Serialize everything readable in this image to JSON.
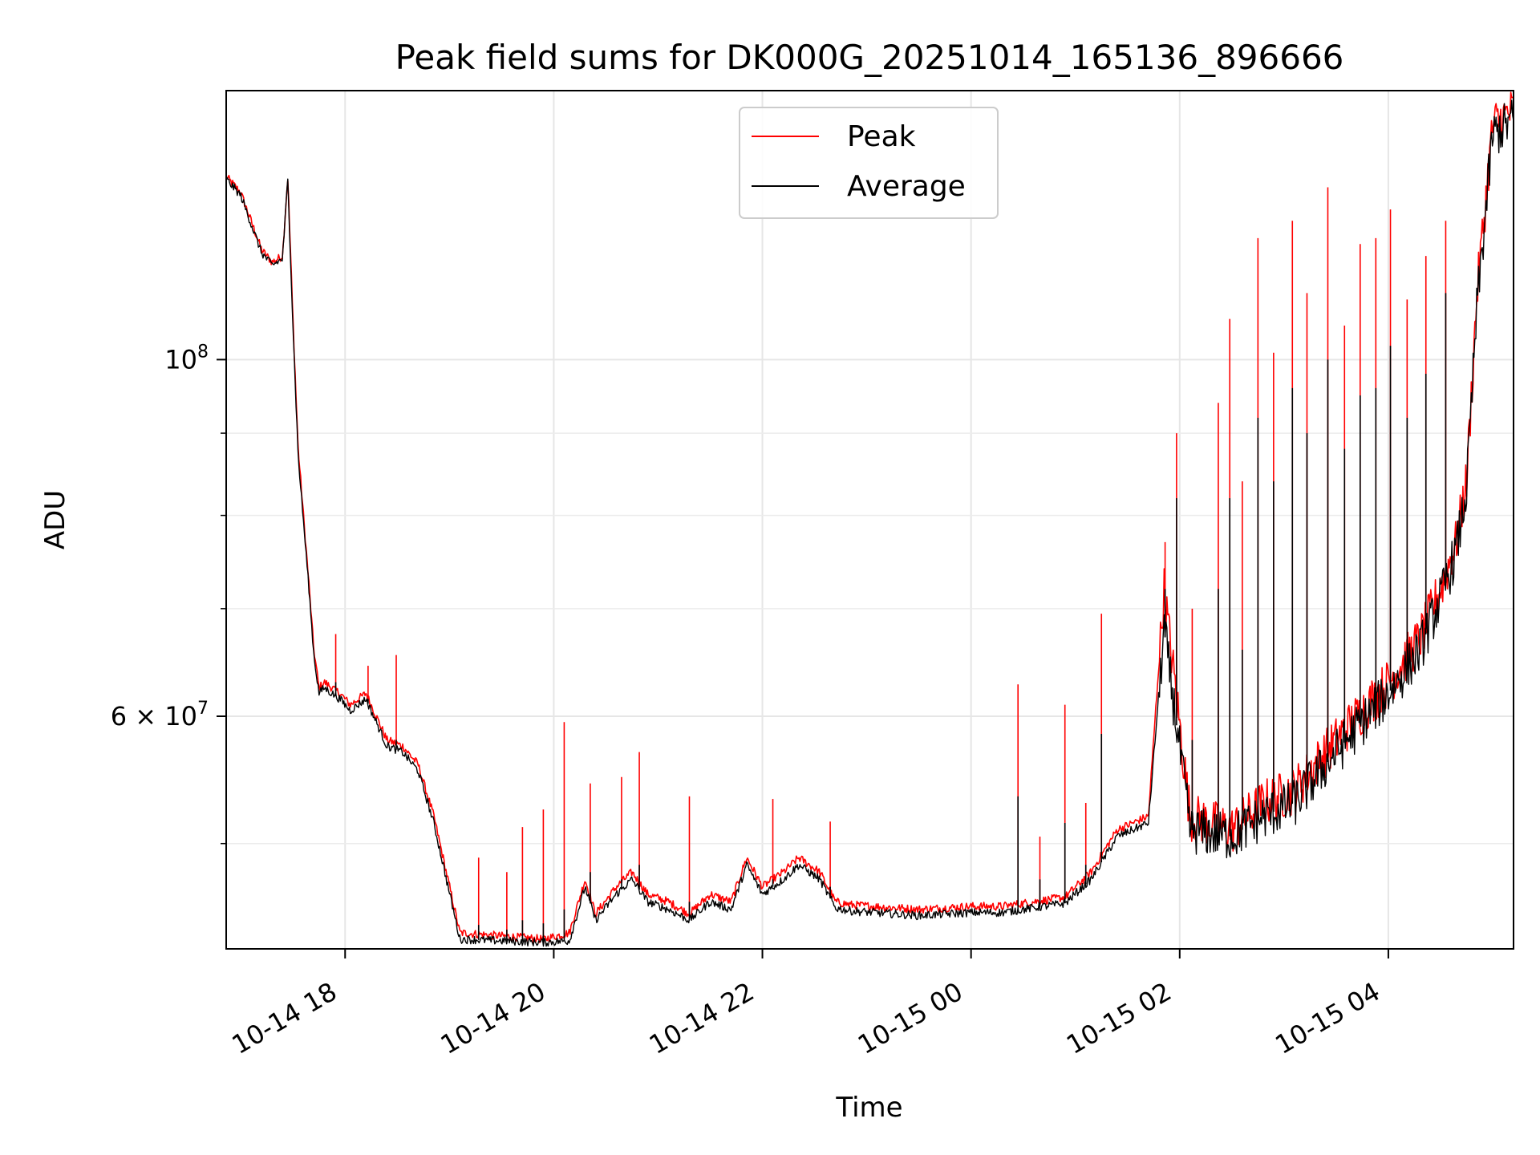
{
  "chart_data": {
    "type": "line",
    "title": "Peak field sums for DK000G_20251014_165136_896666",
    "xlabel": "Time",
    "ylabel": "ADU",
    "yscale": "log",
    "ylim": [
      43000000,
      147000000
    ],
    "xlim_hours": [
      16.86,
      5.2
    ],
    "grid": true,
    "legend_location": "upper center",
    "x_ticks": [
      {
        "label": "10-14 18",
        "hour": 18
      },
      {
        "label": "10-14 20",
        "hour": 20
      },
      {
        "label": "10-14 22",
        "hour": 22
      },
      {
        "label": "10-15 00",
        "hour": 24
      },
      {
        "label": "10-15 02",
        "hour": 26
      },
      {
        "label": "10-15 04",
        "hour": 28
      }
    ],
    "y_ticks": [
      {
        "label_base": "10",
        "label_exp": "8",
        "value": 100000000
      },
      {
        "label_base": "6 × 10",
        "label_exp": "7",
        "value": 60000000
      }
    ],
    "y_minor_ticks": [
      50000000,
      70000000,
      80000000,
      90000000
    ],
    "series": [
      {
        "name": "Peak",
        "color": "#ff0000",
        "hours": [
          16.86,
          17.0,
          17.2,
          17.3,
          17.4,
          17.45,
          17.5,
          17.55,
          17.65,
          17.7,
          17.75,
          17.8,
          17.95,
          18.05,
          18.2,
          18.4,
          18.55,
          18.7,
          18.85,
          19.1,
          19.5,
          19.9,
          20.15,
          20.3,
          20.4,
          20.6,
          20.75,
          20.9,
          21.1,
          21.3,
          21.5,
          21.7,
          21.85,
          22.0,
          22.2,
          22.35,
          22.55,
          22.7,
          22.85,
          23.5,
          24.0,
          24.3,
          24.6,
          24.9,
          25.15,
          25.4,
          25.7,
          25.85,
          26.1,
          26.5,
          26.8,
          27.1,
          27.4,
          27.7,
          28.0,
          28.3,
          28.5,
          28.65,
          28.75,
          28.85,
          29.0,
          29.2
        ],
        "values": [
          130000000,
          127000000,
          117000000,
          115000000,
          116000000,
          130000000,
          106000000,
          88000000,
          73000000,
          66000000,
          62500000,
          63000000,
          62000000,
          61000000,
          62000000,
          58000000,
          57500000,
          56000000,
          52000000,
          44000000,
          43800000,
          43600000,
          44000000,
          47500000,
          45200000,
          47000000,
          48000000,
          46500000,
          46000000,
          45200000,
          46500000,
          46000000,
          49000000,
          47000000,
          48000000,
          49000000,
          48000000,
          46000000,
          45800000,
          45500000,
          45700000,
          45700000,
          46000000,
          46300000,
          48000000,
          51000000,
          52000000,
          72000000,
          52000000,
          51000000,
          53000000,
          54000000,
          57000000,
          60000000,
          63000000,
          67000000,
          72000000,
          77000000,
          84000000,
          110000000,
          140000000,
          143000000
        ]
      },
      {
        "name": "Average",
        "color": "#000000",
        "hours": [
          16.86,
          17.0,
          17.2,
          17.3,
          17.4,
          17.45,
          17.5,
          17.55,
          17.65,
          17.7,
          17.75,
          17.8,
          17.95,
          18.05,
          18.2,
          18.4,
          18.55,
          18.7,
          18.85,
          19.1,
          19.5,
          19.9,
          20.15,
          20.3,
          20.4,
          20.6,
          20.75,
          20.9,
          21.1,
          21.3,
          21.5,
          21.7,
          21.85,
          22.0,
          22.2,
          22.35,
          22.55,
          22.7,
          22.85,
          23.5,
          24.0,
          24.3,
          24.6,
          24.9,
          25.15,
          25.4,
          25.7,
          25.85,
          26.1,
          26.5,
          26.8,
          27.1,
          27.4,
          27.7,
          28.0,
          28.3,
          28.5,
          28.65,
          28.75,
          28.85,
          29.0,
          29.2
        ],
        "values": [
          129500000,
          126500000,
          116500000,
          114500000,
          115500000,
          129500000,
          105000000,
          87000000,
          72500000,
          65500000,
          62000000,
          62500000,
          61500000,
          60500000,
          61500000,
          57500000,
          57000000,
          55500000,
          51500000,
          43600000,
          43500000,
          43400000,
          43500000,
          47000000,
          44800000,
          46500000,
          47500000,
          46000000,
          45500000,
          44800000,
          46000000,
          45500000,
          48500000,
          46500000,
          47500000,
          48500000,
          47500000,
          45600000,
          45400000,
          45100000,
          45300000,
          45300000,
          45600000,
          45900000,
          47500000,
          50500000,
          51500000,
          68000000,
          51000000,
          50500000,
          52000000,
          53000000,
          56000000,
          59000000,
          62000000,
          66000000,
          71000000,
          76000000,
          83000000,
          108000000,
          138000000,
          141000000
        ]
      }
    ],
    "spikes": [
      {
        "hour": 17.91,
        "peak": 67500000,
        "avg": 63000000
      },
      {
        "hour": 18.22,
        "peak": 64500000,
        "avg": 61500000
      },
      {
        "hour": 18.49,
        "peak": 65500000,
        "avg": 58000000
      },
      {
        "hour": 19.28,
        "peak": 49000000,
        "avg": 44500000
      },
      {
        "hour": 19.55,
        "peak": 48000000,
        "avg": 44200000
      },
      {
        "hour": 19.7,
        "peak": 51200000,
        "avg": 44800000
      },
      {
        "hour": 19.9,
        "peak": 52500000,
        "avg": 44600000
      },
      {
        "hour": 20.1,
        "peak": 59500000,
        "avg": 45500000
      },
      {
        "hour": 20.35,
        "peak": 54500000,
        "avg": 48000000
      },
      {
        "hour": 20.65,
        "peak": 55000000,
        "avg": 47500000
      },
      {
        "hour": 20.82,
        "peak": 57000000,
        "avg": 48500000
      },
      {
        "hour": 21.3,
        "peak": 53500000,
        "avg": 46000000
      },
      {
        "hour": 22.1,
        "peak": 53300000,
        "avg": 47500000
      },
      {
        "hour": 22.65,
        "peak": 51600000,
        "avg": 47000000
      },
      {
        "hour": 24.45,
        "peak": 62800000,
        "avg": 53500000
      },
      {
        "hour": 24.66,
        "peak": 50500000,
        "avg": 47500000
      },
      {
        "hour": 24.9,
        "peak": 61000000,
        "avg": 51500000
      },
      {
        "hour": 25.1,
        "peak": 53000000,
        "avg": 48500000
      },
      {
        "hour": 25.25,
        "peak": 69500000,
        "avg": 58500000
      },
      {
        "hour": 25.86,
        "peak": 77000000,
        "avg": 72000000
      },
      {
        "hour": 25.97,
        "peak": 90000000,
        "avg": 82000000
      },
      {
        "hour": 26.12,
        "peak": 70000000,
        "avg": 58000000
      },
      {
        "hour": 26.37,
        "peak": 94000000,
        "avg": 72000000
      },
      {
        "hour": 26.48,
        "peak": 106000000,
        "avg": 82000000
      },
      {
        "hour": 26.6,
        "peak": 84000000,
        "avg": 66000000
      },
      {
        "hour": 26.75,
        "peak": 119000000,
        "avg": 92000000
      },
      {
        "hour": 26.9,
        "peak": 101000000,
        "avg": 84000000
      },
      {
        "hour": 27.08,
        "peak": 122000000,
        "avg": 96000000
      },
      {
        "hour": 27.22,
        "peak": 110000000,
        "avg": 90000000
      },
      {
        "hour": 27.42,
        "peak": 128000000,
        "avg": 100000000
      },
      {
        "hour": 27.58,
        "peak": 105000000,
        "avg": 88000000
      },
      {
        "hour": 27.73,
        "peak": 118000000,
        "avg": 95000000
      },
      {
        "hour": 27.88,
        "peak": 119000000,
        "avg": 96000000
      },
      {
        "hour": 28.02,
        "peak": 124000000,
        "avg": 102000000
      },
      {
        "hour": 28.18,
        "peak": 109000000,
        "avg": 92000000
      },
      {
        "hour": 28.36,
        "peak": 116000000,
        "avg": 98000000
      },
      {
        "hour": 28.55,
        "peak": 122000000,
        "avg": 110000000
      }
    ]
  }
}
